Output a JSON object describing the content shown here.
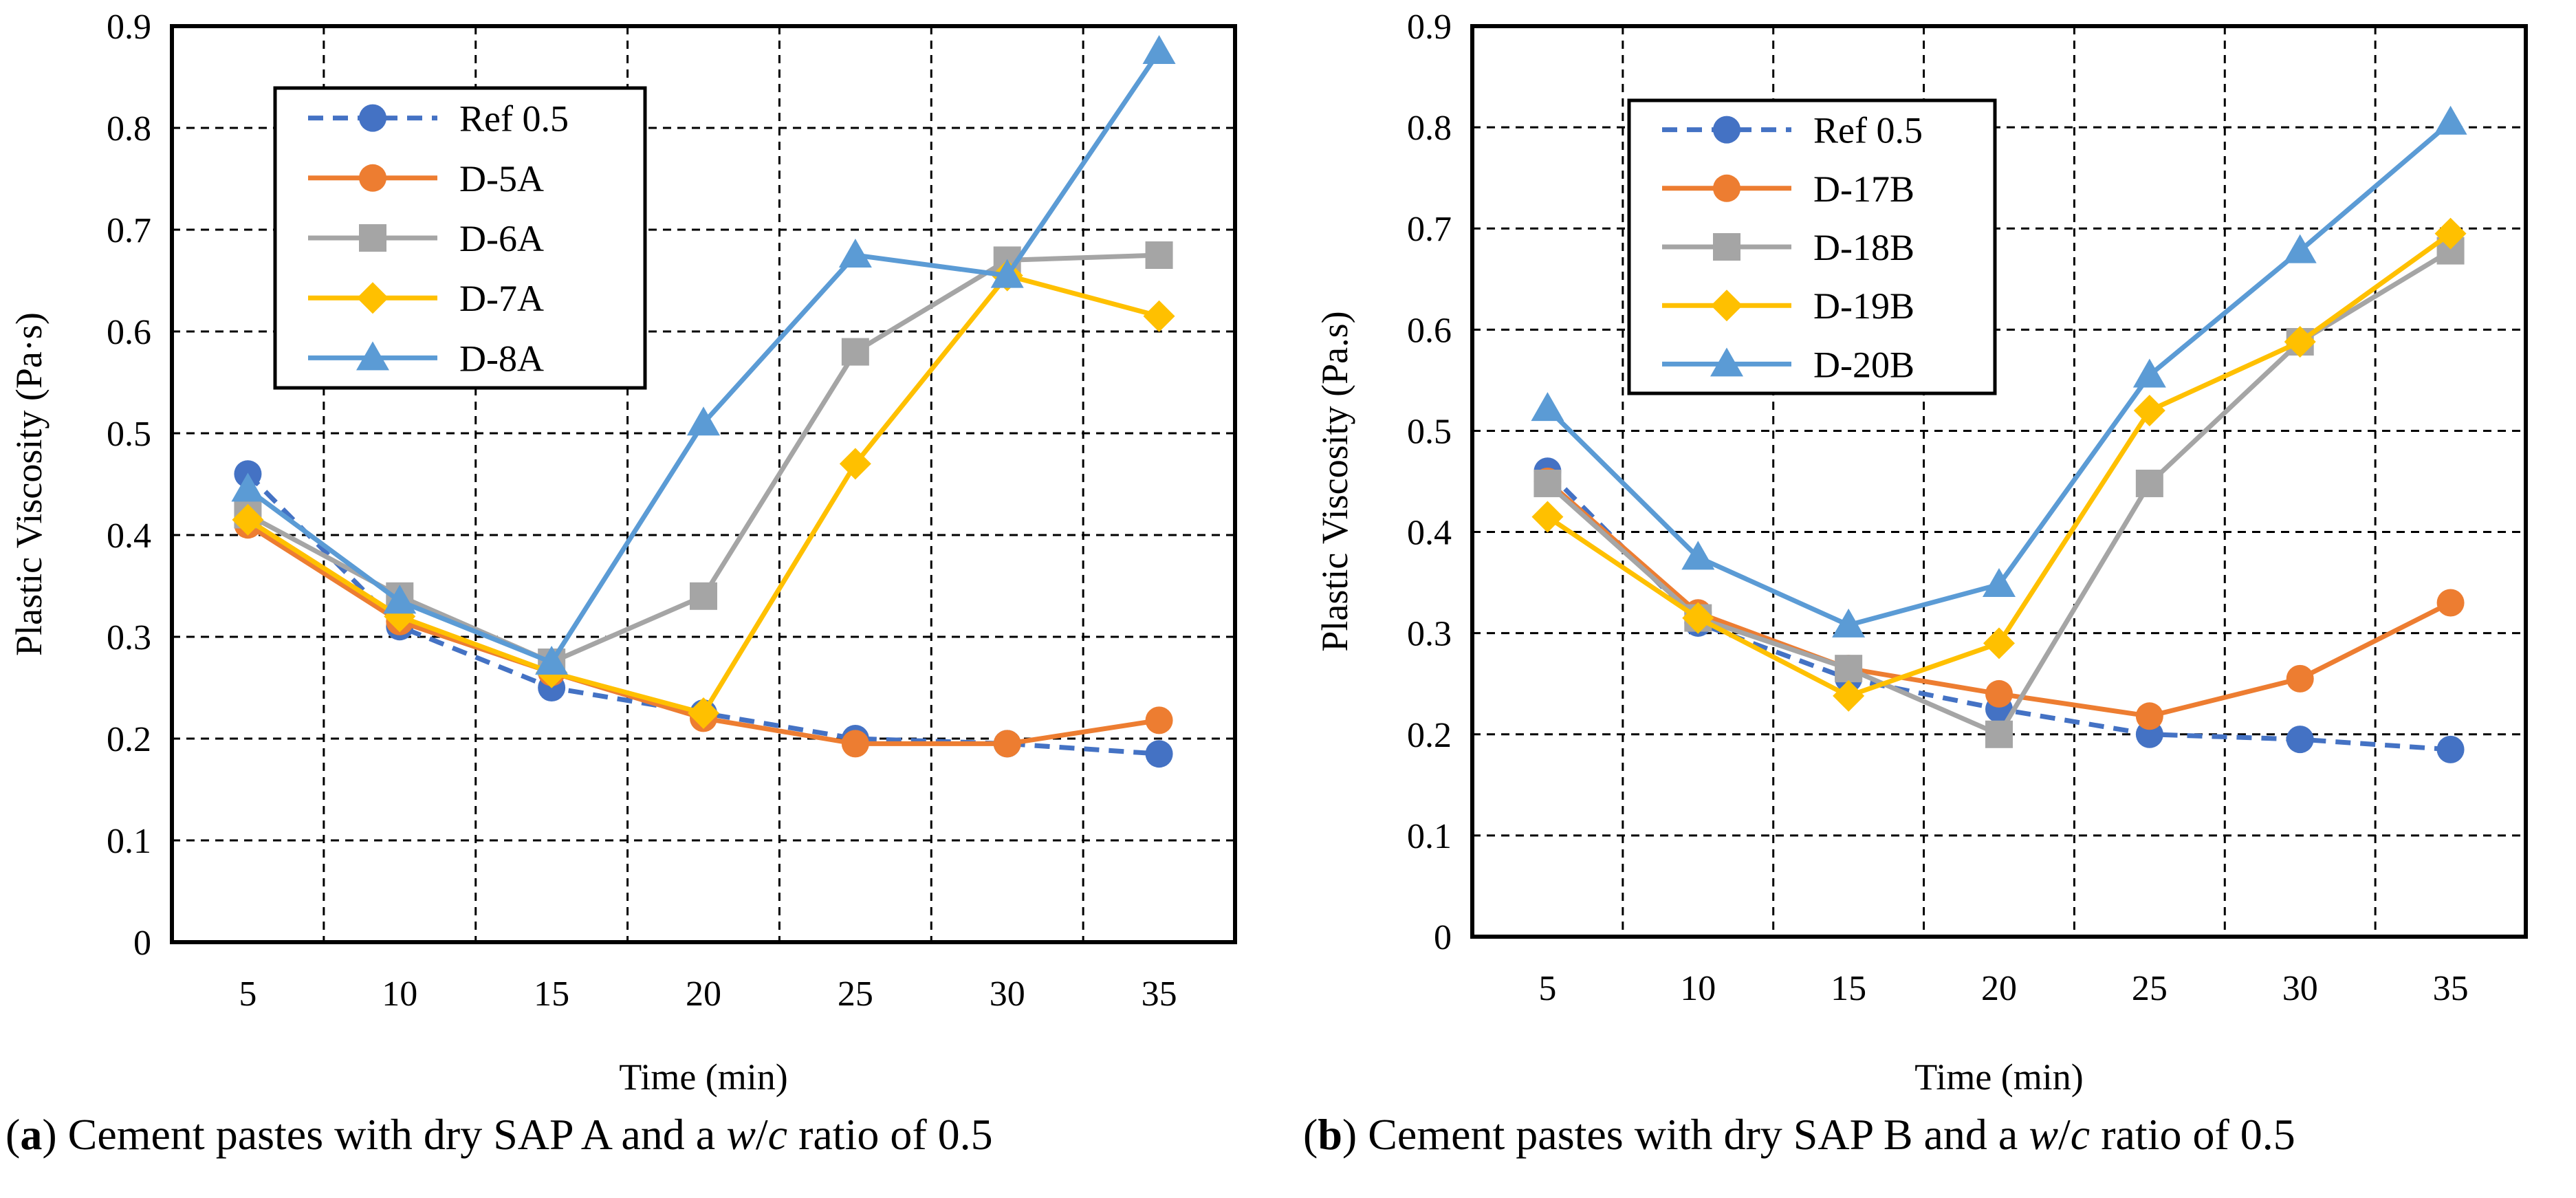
{
  "captions": [
    {
      "prefix": "(",
      "letter": "a",
      "after_letter": ") Cement pastes with dry SAP A and a ",
      "w": "w",
      "slash": "/",
      "c": "c",
      "suffix": " ratio of 0.5"
    },
    {
      "prefix": "(",
      "letter": "b",
      "after_letter": ") Cement pastes with dry SAP B and a ",
      "w": "w",
      "slash": "/",
      "c": "c",
      "suffix": " ratio of 0.5"
    }
  ],
  "colors": {
    "ref": "#4472C4",
    "orange": "#ED7D31",
    "gray": "#A5A5A5",
    "yellow": "#FFC000",
    "blue": "#5B9BD5"
  },
  "chart_data": [
    {
      "type": "line",
      "xlabel": "Time (min)",
      "ylabel": "Plastic Viscosity (Pa·s)",
      "x": [
        5,
        10,
        15,
        20,
        25,
        30,
        35
      ],
      "xticks": [
        "5",
        "10",
        "15",
        "20",
        "25",
        "30",
        "35"
      ],
      "ylim": [
        0,
        0.9
      ],
      "yticks": [
        "0",
        "0.1",
        "0.2",
        "0.3",
        "0.4",
        "0.5",
        "0.6",
        "0.7",
        "0.8",
        "0.9"
      ],
      "grid": true,
      "legend_position": "top-left",
      "series": [
        {
          "name": "Ref 0.5",
          "color": "#4472C4",
          "marker": "circle",
          "dashed": true,
          "values": [
            0.46,
            0.31,
            0.25,
            0.225,
            0.2,
            0.195,
            0.185
          ]
        },
        {
          "name": "D-5A",
          "color": "#ED7D31",
          "marker": "circle",
          "dashed": false,
          "values": [
            0.41,
            0.315,
            0.265,
            0.22,
            0.195,
            0.195,
            0.218
          ]
        },
        {
          "name": "D-6A",
          "color": "#A5A5A5",
          "marker": "square",
          "dashed": false,
          "values": [
            0.42,
            0.34,
            0.275,
            0.34,
            0.58,
            0.67,
            0.675
          ]
        },
        {
          "name": "D-7A",
          "color": "#FFC000",
          "marker": "diamond",
          "dashed": false,
          "values": [
            0.415,
            0.32,
            0.265,
            0.225,
            0.47,
            0.655,
            0.615
          ]
        },
        {
          "name": "D-8A",
          "color": "#5B9BD5",
          "marker": "triangle",
          "dashed": false,
          "values": [
            0.445,
            0.335,
            0.275,
            0.51,
            0.675,
            0.655,
            0.875
          ]
        }
      ]
    },
    {
      "type": "line",
      "xlabel": "Time (min)",
      "ylabel": "Plastic Viscosity (Pa.s)",
      "x": [
        5,
        10,
        15,
        20,
        25,
        30,
        35
      ],
      "xticks": [
        "5",
        "10",
        "15",
        "20",
        "25",
        "30",
        "35"
      ],
      "ylim": [
        0,
        0.9
      ],
      "yticks": [
        "0",
        "0.1",
        "0.2",
        "0.3",
        "0.4",
        "0.5",
        "0.6",
        "0.7",
        "0.8",
        "0.9"
      ],
      "grid": true,
      "legend_position": "top-left",
      "series": [
        {
          "name": "Ref 0.5",
          "color": "#4472C4",
          "marker": "circle",
          "dashed": true,
          "values": [
            0.46,
            0.31,
            0.255,
            0.225,
            0.2,
            0.195,
            0.185
          ]
        },
        {
          "name": "D-17B",
          "color": "#ED7D31",
          "marker": "circle",
          "dashed": false,
          "values": [
            0.45,
            0.32,
            0.265,
            0.24,
            0.218,
            0.255,
            0.33
          ]
        },
        {
          "name": "D-18B",
          "color": "#A5A5A5",
          "marker": "square",
          "dashed": false,
          "values": [
            0.448,
            0.315,
            0.265,
            0.2,
            0.448,
            0.588,
            0.678
          ]
        },
        {
          "name": "D-19B",
          "color": "#FFC000",
          "marker": "diamond",
          "dashed": false,
          "values": [
            0.415,
            0.315,
            0.238,
            0.29,
            0.52,
            0.588,
            0.695
          ]
        },
        {
          "name": "D-20B",
          "color": "#5B9BD5",
          "marker": "triangle",
          "dashed": false,
          "values": [
            0.522,
            0.375,
            0.308,
            0.348,
            0.555,
            0.678,
            0.805
          ]
        }
      ]
    }
  ]
}
